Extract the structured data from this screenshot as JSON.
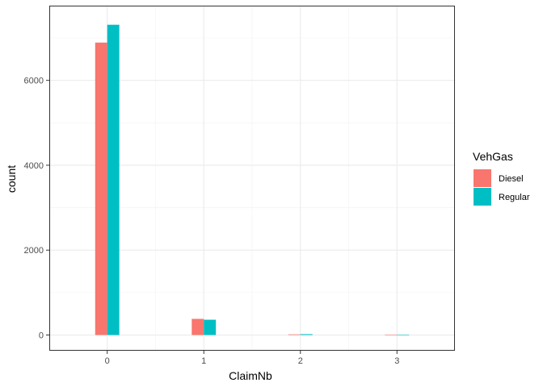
{
  "chart_data": {
    "type": "bar",
    "categories": [
      "0",
      "1",
      "2",
      "3"
    ],
    "x": [
      0,
      1,
      2,
      3
    ],
    "series": [
      {
        "name": "Diesel",
        "color": "#F8766D",
        "values": [
          6890,
          380,
          15,
          3
        ]
      },
      {
        "name": "Regular",
        "color": "#00BFC4",
        "values": [
          7310,
          360,
          20,
          4
        ]
      }
    ],
    "xlabel": "ClaimNb",
    "ylabel": "count",
    "xlim": [
      -0.6,
      3.6
    ],
    "ylim": [
      -370,
      7760
    ],
    "yticks": [
      0,
      2000,
      4000,
      6000
    ],
    "ytick_labels": [
      "0",
      "2000",
      "4000",
      "6000"
    ],
    "xtick_labels": [
      "0",
      "1",
      "2",
      "3"
    ],
    "legend": {
      "title": "VehGas",
      "placement": "right"
    },
    "grid": true,
    "theme": "bw"
  }
}
